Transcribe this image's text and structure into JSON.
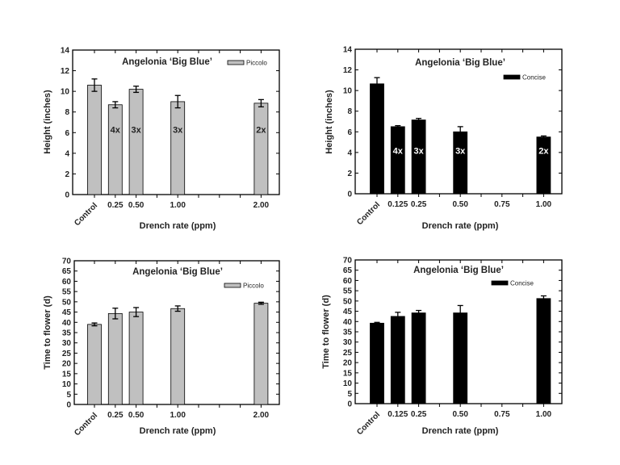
{
  "chart_data": [
    {
      "type": "bar",
      "title": "Angelonia ‘Big Blue’",
      "xlabel": "Drench rate (ppm)",
      "ylabel": "Height (inches)",
      "ylim": [
        0,
        14
      ],
      "yticks": [
        0,
        2,
        4,
        6,
        8,
        10,
        12,
        14
      ],
      "tick_labels": [
        "Control",
        "0.25",
        "0.50",
        "",
        "1.00",
        "",
        "",
        "",
        "2.00"
      ],
      "legend": "top-right",
      "series": [
        {
          "name": "Piccolo",
          "color": "#c0c0c0",
          "values": [
            10.6,
            8.7,
            10.2,
            null,
            9.0,
            null,
            null,
            null,
            8.85
          ],
          "errors": [
            0.6,
            0.3,
            0.3,
            null,
            0.6,
            null,
            null,
            null,
            0.35
          ],
          "bar_labels": [
            "",
            "4x",
            "3x",
            "",
            "3x",
            "",
            "",
            "",
            "2x"
          ],
          "bar_label_color": "#222222"
        }
      ]
    },
    {
      "type": "bar",
      "title": "Angelonia ‘Big Blue’",
      "xlabel": "Drench rate (ppm)",
      "ylabel": "Height (inches)",
      "ylim": [
        0,
        14
      ],
      "yticks": [
        0,
        2,
        4,
        6,
        8,
        10,
        12,
        14
      ],
      "tick_labels": [
        "Control",
        "0.125",
        "0.25",
        "",
        "0.50",
        "",
        "0.75",
        "",
        "1.00"
      ],
      "legend": "top-right",
      "series": [
        {
          "name": "Concise",
          "color": "#000000",
          "values": [
            10.65,
            6.5,
            7.15,
            null,
            6.0,
            null,
            null,
            null,
            5.5
          ],
          "errors": [
            0.6,
            0.1,
            0.15,
            null,
            0.5,
            null,
            null,
            null,
            0.1
          ],
          "bar_labels": [
            "",
            "4x",
            "3x",
            "",
            "3x",
            "",
            "",
            "",
            "2x"
          ],
          "bar_label_color": "#ffffff"
        }
      ]
    },
    {
      "type": "bar",
      "title": "Angelonia ‘Big Blue’",
      "xlabel": "Drench rate (ppm)",
      "ylabel": "Time to flower (d)",
      "ylim": [
        0,
        70
      ],
      "yticks": [
        0,
        5,
        10,
        15,
        20,
        25,
        30,
        35,
        40,
        45,
        50,
        55,
        60,
        65,
        70
      ],
      "tick_labels": [
        "Control",
        "0.25",
        "0.50",
        "",
        "1.00",
        "",
        "",
        "",
        "2.00"
      ],
      "legend": "top-right",
      "series": [
        {
          "name": "Piccolo",
          "color": "#c0c0c0",
          "values": [
            39.0,
            44.3,
            45.0,
            null,
            46.7,
            null,
            null,
            null,
            49.3
          ],
          "errors": [
            0.7,
            2.6,
            2.2,
            null,
            1.3,
            null,
            null,
            null,
            0.5
          ]
        }
      ]
    },
    {
      "type": "bar",
      "title": "Angelonia ‘Big Blue’",
      "xlabel": "Drench rate (ppm)",
      "ylabel": "Time to flower (d)",
      "ylim": [
        0,
        70
      ],
      "yticks": [
        0,
        5,
        10,
        15,
        20,
        25,
        30,
        35,
        40,
        45,
        50,
        55,
        60,
        65,
        70
      ],
      "tick_labels": [
        "Control",
        "0.125",
        "0.25",
        "",
        "0.50",
        "",
        "0.75",
        "",
        "1.00"
      ],
      "legend": "top-right",
      "series": [
        {
          "name": "Concise",
          "color": "#000000",
          "values": [
            39.2,
            42.5,
            44.2,
            null,
            44.2,
            null,
            null,
            null,
            51.2
          ],
          "errors": [
            0.4,
            2.0,
            1.2,
            null,
            3.6,
            null,
            null,
            null,
            1.3
          ]
        }
      ]
    }
  ]
}
